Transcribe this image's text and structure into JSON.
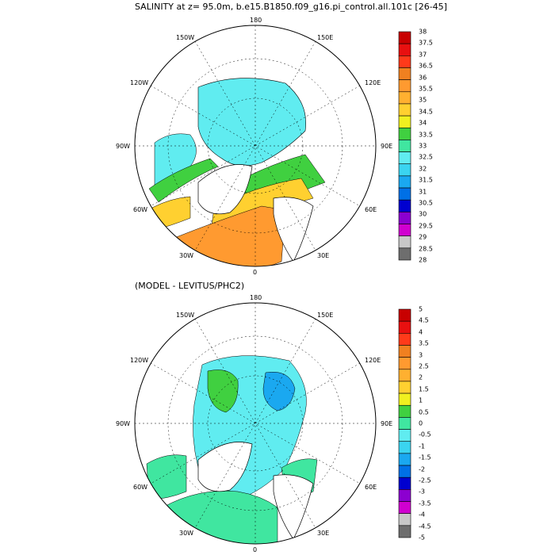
{
  "colors": {
    "salinity_scale": [
      "#6e6e6e",
      "#c8c8c8",
      "#d000d0",
      "#8c00d0",
      "#0000d0",
      "#0070e6",
      "#1aa8f0",
      "#3ad4f0",
      "#60ecf0",
      "#40e6a0",
      "#40d040",
      "#f0f020",
      "#ffd030",
      "#ffb030",
      "#ff9a30",
      "#f08020",
      "#ff3a1a",
      "#e81010",
      "#c80000"
    ],
    "diff_scale": [
      "#6e6e6e",
      "#c8c8c8",
      "#d000d0",
      "#8c00d0",
      "#0000d0",
      "#0070e6",
      "#1aa8f0",
      "#3ad4f0",
      "#60ecf0",
      "#40e6a0",
      "#40d040",
      "#f0f020",
      "#ffd030",
      "#ffb030",
      "#ff9a30",
      "#f08020",
      "#ff3a1a",
      "#e81010",
      "#c80000"
    ],
    "land": "#ffffff",
    "coast": "#000000"
  },
  "top": {
    "title": "SALINITY at z=  95.0m, b.e15.B1850.f09_g16.pi_control.all.101c [26-45]",
    "lon_labels": {
      "n": "180",
      "nw": "150W",
      "ne": "150E",
      "wnw": "120W",
      "ene": "120E",
      "w": "90W",
      "e": "90E",
      "wsw": "60W",
      "ese": "60E",
      "ssw": "30W",
      "sse": "30E",
      "s": "0"
    },
    "colorbar_labels": [
      "38",
      "37.5",
      "37",
      "36.5",
      "36",
      "35.5",
      "35",
      "34.5",
      "34",
      "33.5",
      "33",
      "32.5",
      "32",
      "31.5",
      "31",
      "30.5",
      "30",
      "29.5",
      "29",
      "28.5",
      "28"
    ]
  },
  "bottom": {
    "title": "(MODEL - LEVITUS/PHC2)",
    "lon_labels": {
      "n": "180",
      "nw": "150W",
      "ne": "150E",
      "wnw": "120W",
      "ene": "120E",
      "w": "90W",
      "e": "90E",
      "wsw": "60W",
      "ese": "60E",
      "ssw": "30W",
      "sse": "30E",
      "s": "0"
    },
    "colorbar_labels": [
      "5",
      "4.5",
      "4",
      "3.5",
      "3",
      "2.5",
      "2",
      "1.5",
      "1",
      "0.5",
      "0",
      "-0.5",
      "-1",
      "-1.5",
      "-2",
      "-2.5",
      "-3",
      "-3.5",
      "-4",
      "-4.5",
      "-5"
    ]
  }
}
